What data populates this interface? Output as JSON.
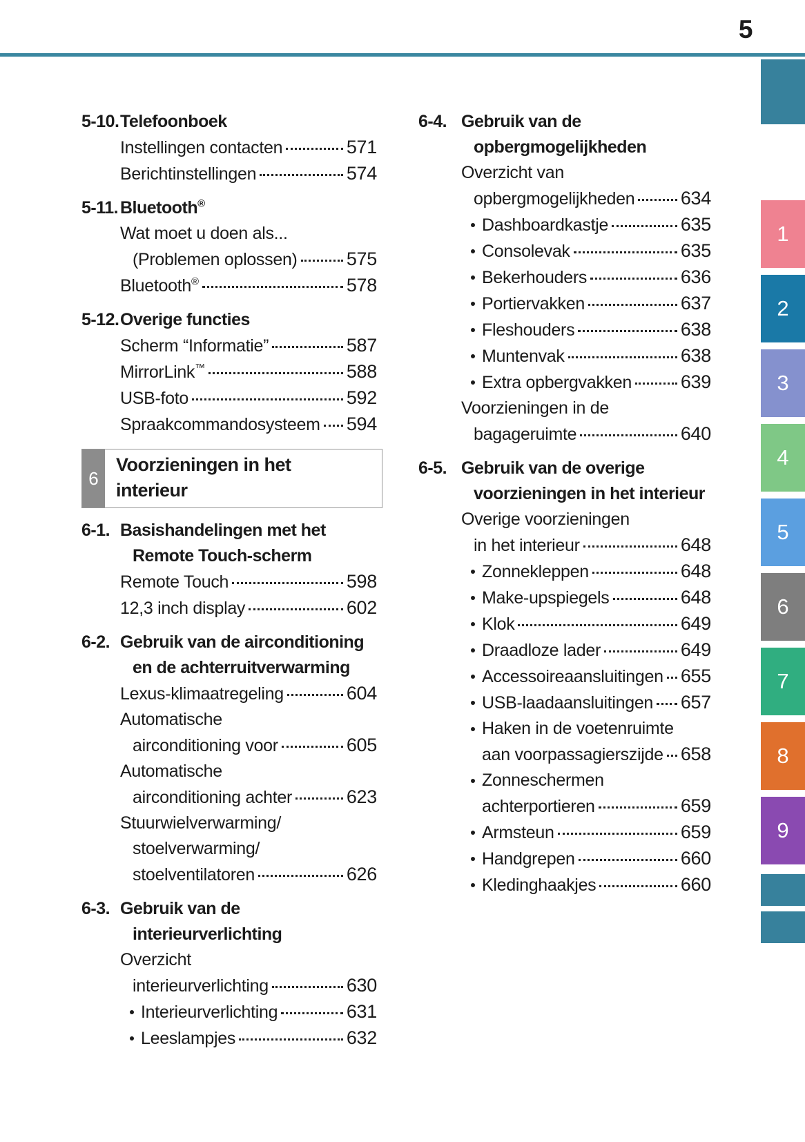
{
  "page": {
    "number": "5"
  },
  "colors": {
    "accent_teal": "#37819C",
    "rule_teal": "#3A87A0",
    "chapter_square_gray": "#8C8C8C",
    "text": "#1B1B1B",
    "tab_pink": "#EF8291",
    "tab_ocean_blue": "#1A79A7",
    "tab_periwinkle": "#8591CE",
    "tab_green": "#7FC886",
    "tab_blue": "#5B9FE0",
    "tab_gray": "#7E7E7E",
    "tab_jade": "#30AE80",
    "tab_orange": "#E0702D",
    "tab_purple": "#8A4AB1"
  },
  "sidebar": {
    "tabs": [
      {
        "label": "",
        "color": "#37819C"
      },
      {
        "label": "1",
        "color": "#EF8291"
      },
      {
        "label": "2",
        "color": "#1A79A7"
      },
      {
        "label": "3",
        "color": "#8591CE"
      },
      {
        "label": "4",
        "color": "#7FC886"
      },
      {
        "label": "5",
        "color": "#5B9FE0"
      },
      {
        "label": "6",
        "color": "#7E7E7E"
      },
      {
        "label": "7",
        "color": "#30AE80"
      },
      {
        "label": "8",
        "color": "#E0702D"
      },
      {
        "label": "9",
        "color": "#8A4AB1"
      },
      {
        "label": "",
        "color": "#37819C"
      },
      {
        "label": "",
        "color": "#37819C"
      }
    ]
  },
  "toc": {
    "left": [
      {
        "type": "section",
        "number": "5-10.",
        "title_lines": [
          "Telefoonboek"
        ],
        "entries": [
          {
            "lines": [
              "Instellingen contacten"
            ],
            "page": "571"
          },
          {
            "lines": [
              "Berichtinstellingen"
            ],
            "page": "574"
          }
        ]
      },
      {
        "type": "section",
        "number": "5-11.",
        "title_lines": [
          "Bluetooth®"
        ],
        "entries": [
          {
            "lines": [
              "Wat moet u doen als...",
              "(Problemen oplossen)"
            ],
            "page": "575"
          },
          {
            "lines": [
              "Bluetooth®"
            ],
            "page": "578"
          }
        ]
      },
      {
        "type": "section",
        "number": "5-12.",
        "title_lines": [
          "Overige functies"
        ],
        "entries": [
          {
            "lines": [
              "Scherm “Informatie”"
            ],
            "page": "587"
          },
          {
            "lines": [
              "MirrorLink™"
            ],
            "page": "588"
          },
          {
            "lines": [
              "USB-foto"
            ],
            "page": "592"
          },
          {
            "lines": [
              "Spraakcommandosysteem"
            ],
            "page": "594"
          }
        ]
      },
      {
        "type": "chapter",
        "number": "6",
        "title_lines": [
          "Voorzieningen in het",
          "interieur"
        ]
      },
      {
        "type": "section",
        "number": "6-1.",
        "title_lines": [
          "Basishandelingen met het",
          "Remote Touch-scherm"
        ],
        "entries": [
          {
            "lines": [
              "Remote Touch"
            ],
            "page": "598"
          },
          {
            "lines": [
              "12,3 inch display"
            ],
            "page": "602"
          }
        ]
      },
      {
        "type": "section",
        "number": "6-2.",
        "title_lines": [
          "Gebruik van de airconditioning",
          "en de achterruitverwarming"
        ],
        "entries": [
          {
            "lines": [
              "Lexus-klimaatregeling"
            ],
            "page": "604"
          },
          {
            "lines": [
              "Automatische",
              "airconditioning voor"
            ],
            "page": "605"
          },
          {
            "lines": [
              "Automatische",
              "airconditioning achter"
            ],
            "page": "623"
          },
          {
            "lines": [
              "Stuurwielverwarming/",
              "stoelverwarming/",
              "stoelventilatoren"
            ],
            "page": "626"
          }
        ]
      },
      {
        "type": "section",
        "number": "6-3.",
        "title_lines": [
          "Gebruik van de",
          "interieurverlichting"
        ],
        "entries": [
          {
            "lines": [
              "Overzicht",
              "interieurverlichting"
            ],
            "page": "630"
          },
          {
            "bullet": true,
            "lines": [
              "Interieurverlichting"
            ],
            "page": "631"
          },
          {
            "bullet": true,
            "lines": [
              "Leeslampjes"
            ],
            "page": "632"
          }
        ]
      }
    ],
    "right": [
      {
        "type": "section",
        "number": "6-4.",
        "title_lines": [
          "Gebruik van de",
          "opbergmogelijkheden"
        ],
        "entries": [
          {
            "lines": [
              "Overzicht van",
              "opbergmogelijkheden"
            ],
            "page": "634"
          },
          {
            "bullet": true,
            "lines": [
              "Dashboardkastje"
            ],
            "page": "635"
          },
          {
            "bullet": true,
            "lines": [
              "Consolevak"
            ],
            "page": "635"
          },
          {
            "bullet": true,
            "lines": [
              "Bekerhouders"
            ],
            "page": "636"
          },
          {
            "bullet": true,
            "lines": [
              "Portiervakken"
            ],
            "page": "637"
          },
          {
            "bullet": true,
            "lines": [
              "Fleshouders"
            ],
            "page": "638"
          },
          {
            "bullet": true,
            "lines": [
              "Muntenvak"
            ],
            "page": "638"
          },
          {
            "bullet": true,
            "lines": [
              "Extra opbergvakken"
            ],
            "page": "639"
          },
          {
            "lines": [
              "Voorzieningen in de",
              "bagageruimte"
            ],
            "page": "640"
          }
        ]
      },
      {
        "type": "section",
        "number": "6-5.",
        "title_lines": [
          "Gebruik van de overige",
          "voorzieningen in het interieur"
        ],
        "entries": [
          {
            "lines": [
              "Overige voorzieningen",
              "in het interieur"
            ],
            "page": "648"
          },
          {
            "bullet": true,
            "lines": [
              "Zonnekleppen"
            ],
            "page": "648"
          },
          {
            "bullet": true,
            "lines": [
              "Make-upspiegels"
            ],
            "page": "648"
          },
          {
            "bullet": true,
            "lines": [
              "Klok"
            ],
            "page": "649"
          },
          {
            "bullet": true,
            "lines": [
              "Draadloze lader"
            ],
            "page": "649"
          },
          {
            "bullet": true,
            "lines": [
              "Accessoireaansluitingen"
            ],
            "page": "655"
          },
          {
            "bullet": true,
            "lines": [
              "USB-laadaansluitingen"
            ],
            "page": "657"
          },
          {
            "bullet": true,
            "lines": [
              "Haken in de voetenruimte",
              "aan voorpassagierszijde"
            ],
            "page": "658"
          },
          {
            "bullet": true,
            "lines": [
              "Zonneschermen",
              "achterportieren"
            ],
            "page": "659"
          },
          {
            "bullet": true,
            "lines": [
              "Armsteun"
            ],
            "page": "659"
          },
          {
            "bullet": true,
            "lines": [
              "Handgrepen"
            ],
            "page": "660"
          },
          {
            "bullet": true,
            "lines": [
              "Kledinghaakjes"
            ],
            "page": "660"
          }
        ]
      }
    ]
  }
}
